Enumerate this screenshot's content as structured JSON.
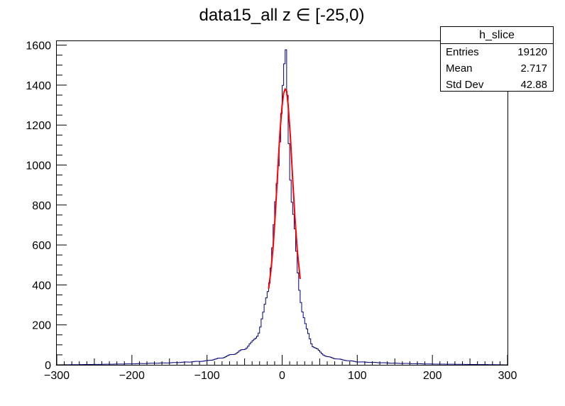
{
  "chart_data": {
    "type": "histogram",
    "title": "data15_all z ∈ [-25,0)",
    "xlabel": "",
    "ylabel": "",
    "xlim": [
      -300,
      300
    ],
    "ylim": [
      0,
      1620
    ],
    "x_ticks": [
      -300,
      -200,
      -100,
      0,
      100,
      200,
      300
    ],
    "x_tick_labels": [
      "−300",
      "−200",
      "−100",
      "0",
      "100",
      "200",
      "300"
    ],
    "y_ticks": [
      0,
      200,
      400,
      600,
      800,
      1000,
      1200,
      1400,
      1600
    ],
    "y_tick_labels": [
      "0",
      "200",
      "400",
      "600",
      "800",
      "1000",
      "1200",
      "1400",
      "1600"
    ],
    "grid": false,
    "legend_position": "top-right",
    "colors": {
      "histogram": "#00007a",
      "fit": "#ff0000",
      "frame": "#000000"
    },
    "stats_box": {
      "title": "h_slice",
      "rows": [
        {
          "label": "Entries",
          "value": "19120"
        },
        {
          "label": "Mean",
          "value": "2.717"
        },
        {
          "label": "Std Dev",
          "value": "42.88"
        }
      ]
    },
    "histogram": {
      "name": "h_slice",
      "bin_width": 2,
      "x_range": [
        -300,
        300
      ],
      "shape_points": [
        [
          -300,
          0
        ],
        [
          -250,
          2
        ],
        [
          -200,
          5
        ],
        [
          -150,
          10
        ],
        [
          -120,
          15
        ],
        [
          -100,
          20
        ],
        [
          -80,
          35
        ],
        [
          -60,
          60
        ],
        [
          -50,
          80
        ],
        [
          -40,
          110
        ],
        [
          -30,
          170
        ],
        [
          -25,
          250
        ],
        [
          -20,
          370
        ],
        [
          -16,
          450
        ],
        [
          -12,
          600
        ],
        [
          -8,
          850
        ],
        [
          -5,
          1050
        ],
        [
          -2,
          1250
        ],
        [
          0,
          1330
        ],
        [
          2,
          1400
        ],
        [
          4,
          1450
        ],
        [
          5,
          1500
        ],
        [
          6,
          1420
        ],
        [
          8,
          1250
        ],
        [
          10,
          1050
        ],
        [
          13,
          850
        ],
        [
          17,
          650
        ],
        [
          20,
          480
        ],
        [
          23,
          380
        ],
        [
          27,
          280
        ],
        [
          32,
          180
        ],
        [
          40,
          100
        ],
        [
          50,
          65
        ],
        [
          60,
          40
        ],
        [
          80,
          25
        ],
        [
          100,
          15
        ],
        [
          150,
          8
        ],
        [
          200,
          4
        ],
        [
          250,
          2
        ],
        [
          300,
          0
        ]
      ]
    },
    "fit": {
      "name": "fit",
      "x_range": [
        -18,
        24
      ],
      "points": [
        [
          -18,
          380
        ],
        [
          -15,
          470
        ],
        [
          -12,
          590
        ],
        [
          -9,
          760
        ],
        [
          -6,
          960
        ],
        [
          -3,
          1160
        ],
        [
          0,
          1300
        ],
        [
          2,
          1360
        ],
        [
          4,
          1380
        ],
        [
          6,
          1370
        ],
        [
          8,
          1300
        ],
        [
          11,
          1140
        ],
        [
          14,
          930
        ],
        [
          17,
          740
        ],
        [
          20,
          580
        ],
        [
          24,
          430
        ]
      ]
    }
  }
}
